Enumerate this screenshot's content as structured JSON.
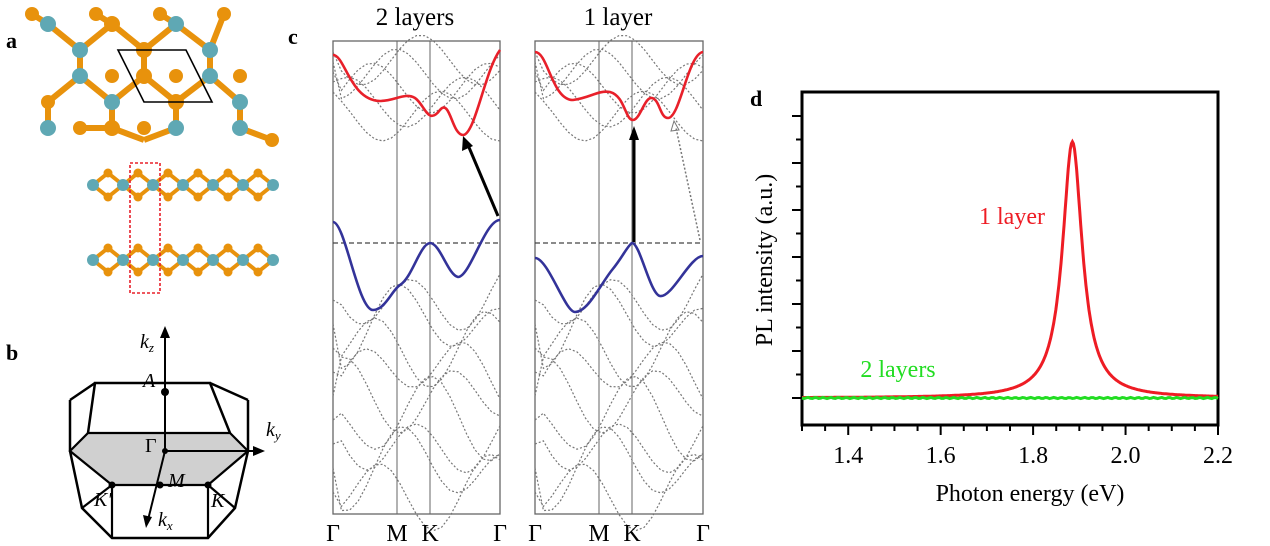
{
  "panels": {
    "a": {
      "label": "a"
    },
    "b": {
      "label": "b",
      "points": [
        "k",
        "z",
        "A",
        "Γ",
        "k",
        "y",
        "M",
        "K′",
        "K",
        "k",
        "x"
      ]
    },
    "c": {
      "label": "c"
    },
    "d": {
      "label": "d"
    }
  },
  "band_panels": [
    {
      "title": "2 layers",
      "ticks": [
        "Γ",
        "M",
        "K",
        "Γ"
      ]
    },
    {
      "title": "1 layer",
      "ticks": [
        "Γ",
        "M",
        "K",
        "Γ"
      ]
    }
  ],
  "colors": {
    "atom_mo": "#5fa8b4",
    "atom_s": "#e8920c",
    "conduction": "#e8202a",
    "valence": "#333399",
    "one_layer": "#ee1c24",
    "two_layers": "#22dd22"
  },
  "chart_data": {
    "type": "line",
    "xlabel": "Photon energy (eV)",
    "ylabel": "PL intensity (a.u.)",
    "xlim": [
      1.3,
      2.2
    ],
    "xticks": [
      "1.4",
      "1.6",
      "1.8",
      "2.0",
      "2.2"
    ],
    "xtick_values": [
      1.4,
      1.6,
      1.8,
      2.0,
      2.2
    ],
    "series": [
      {
        "name": "1 layer",
        "peak_x": 1.885,
        "peak_y": 0.89,
        "width": 0.026,
        "baseline": 0.0
      },
      {
        "name": "2 layers",
        "baseline": 0.0
      }
    ]
  }
}
